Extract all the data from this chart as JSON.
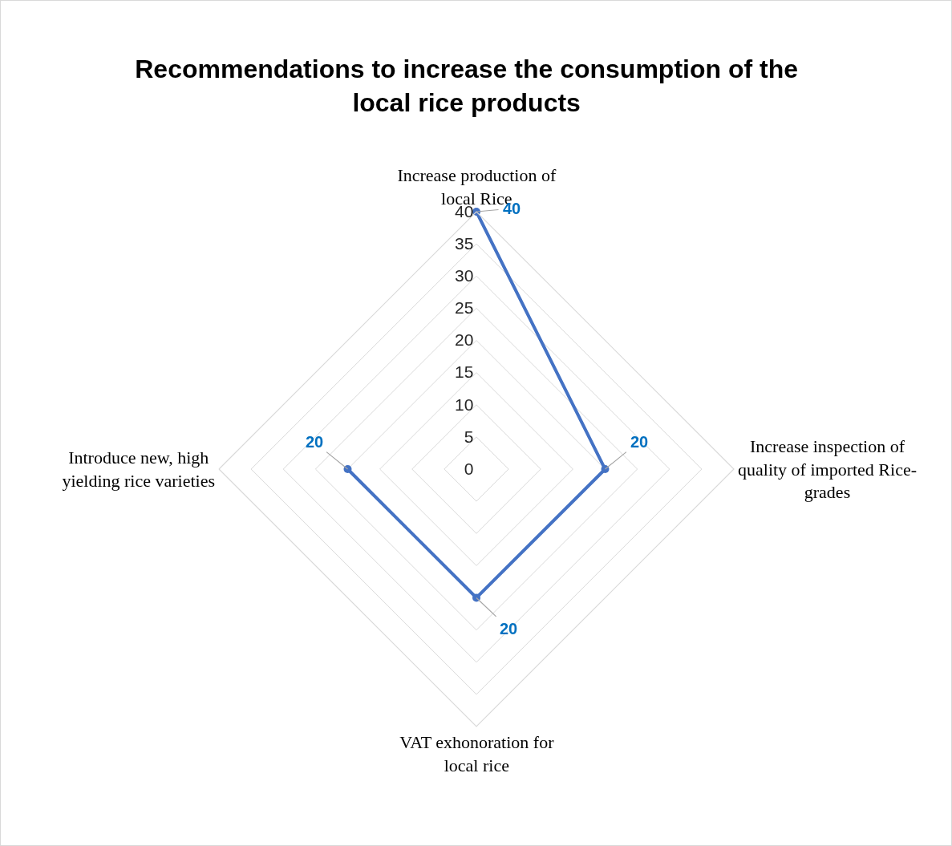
{
  "chart_data": {
    "type": "radar",
    "title": "Recommendations to increase the consumption of the local rice products",
    "categories": [
      "Increase production of local Rice",
      "Increase inspection of quality of imported Rice-grades",
      "VAT exhonoration for local rice",
      "Introduce new, high yielding rice varieties"
    ],
    "series": [
      {
        "color": "#4472c4",
        "values": [
          40,
          20,
          20,
          20
        ]
      }
    ],
    "ylim": [
      0,
      40
    ],
    "yticks": [
      0,
      5,
      10,
      15,
      20,
      25,
      30,
      35,
      40
    ],
    "grid": true,
    "marker": "circle",
    "data_labels": true
  }
}
